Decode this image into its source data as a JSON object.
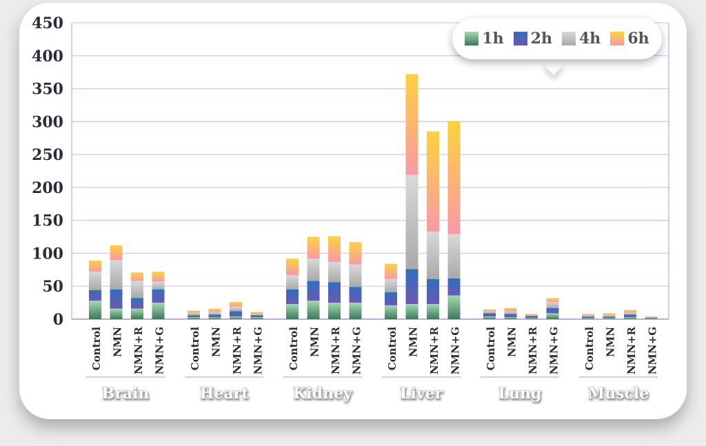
{
  "chart_data": {
    "type": "bar",
    "stacked": true,
    "title": "",
    "xlabel": "",
    "ylabel": "",
    "ylim": [
      0,
      450
    ],
    "yticks": [
      0,
      50,
      100,
      150,
      200,
      250,
      300,
      350,
      400,
      450
    ],
    "grid": true,
    "legend_position": "top-right",
    "groups": [
      {
        "name": "Brain",
        "categories": [
          "Control",
          "NMN",
          "NMN+R",
          "NMN+G"
        ]
      },
      {
        "name": "Heart",
        "categories": [
          "Control",
          "NMN",
          "NMN+R",
          "NMN+G"
        ]
      },
      {
        "name": "Kidney",
        "categories": [
          "Control",
          "NMN",
          "NMN+R",
          "NMN+G"
        ]
      },
      {
        "name": "Liver",
        "categories": [
          "Control",
          "NMN",
          "NMN+R",
          "NMN+G"
        ]
      },
      {
        "name": "Lung",
        "categories": [
          "Control",
          "NMN",
          "NMN+R",
          "NMN+G"
        ]
      },
      {
        "name": "Muscle",
        "categories": [
          "Control",
          "NMN",
          "NMN+R",
          "NMN+G"
        ]
      }
    ],
    "series": [
      {
        "name": "1h",
        "color": "#4f8f6a",
        "values": [
          28,
          16,
          16,
          25,
          3,
          3,
          4,
          3,
          23,
          28,
          25,
          25,
          21,
          23,
          23,
          36,
          4,
          3,
          2,
          9,
          2,
          2,
          3,
          1
        ]
      },
      {
        "name": "2h",
        "color": "#3a62b8",
        "values": [
          16,
          29,
          16,
          20,
          3,
          4,
          8,
          3,
          22,
          30,
          31,
          24,
          20,
          53,
          38,
          26,
          5,
          5,
          3,
          8,
          2,
          2,
          4,
          1
        ]
      },
      {
        "name": "4h",
        "color": "#bdbdbd",
        "values": [
          28,
          45,
          26,
          12,
          4,
          4,
          7,
          2,
          22,
          34,
          31,
          34,
          20,
          143,
          72,
          67,
          3,
          4,
          1,
          9,
          2,
          2,
          3,
          1
        ]
      },
      {
        "name": "6h",
        "color": "#f7b24a",
        "values": [
          17,
          22,
          13,
          15,
          3,
          5,
          7,
          3,
          25,
          33,
          39,
          34,
          23,
          153,
          152,
          172,
          3,
          5,
          2,
          6,
          2,
          3,
          4,
          1
        ]
      }
    ]
  }
}
